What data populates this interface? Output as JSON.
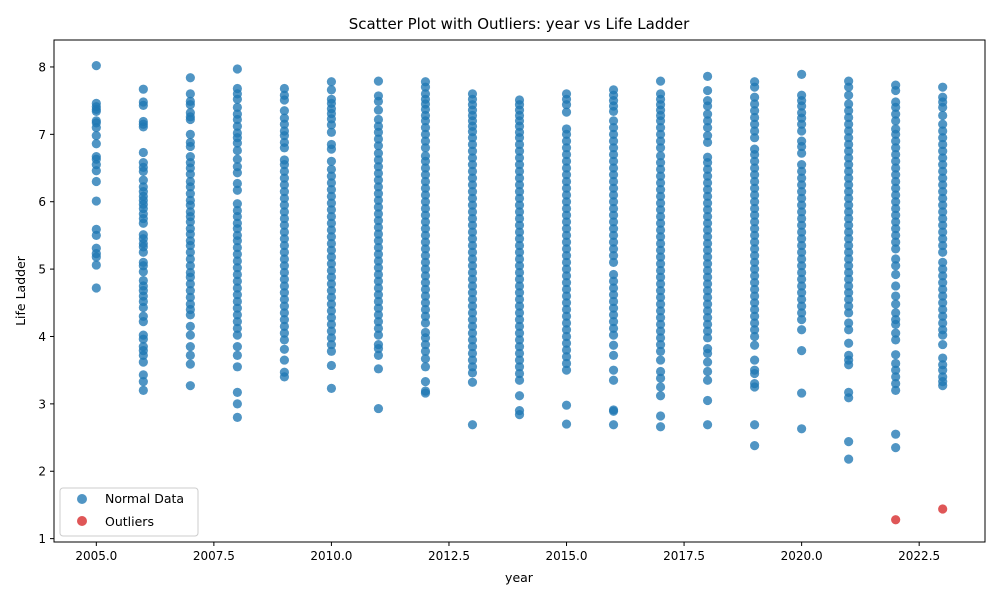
{
  "chart_data": {
    "type": "scatter",
    "title": "Scatter Plot with Outliers: year vs Life Ladder",
    "xlabel": "year",
    "ylabel": "Life Ladder",
    "xlim": [
      2004.1,
      2023.9
    ],
    "ylim": [
      0.95,
      8.4
    ],
    "x_ticks": [
      2005.0,
      2007.5,
      2010.0,
      2012.5,
      2015.0,
      2017.5,
      2020.0,
      2022.5
    ],
    "x_tick_labels": [
      "2005.0",
      "2007.5",
      "2010.0",
      "2012.5",
      "2015.0",
      "2017.5",
      "2020.0",
      "2022.5"
    ],
    "y_ticks": [
      1,
      2,
      3,
      4,
      5,
      6,
      7,
      8
    ],
    "y_tick_labels": [
      "1",
      "2",
      "3",
      "4",
      "5",
      "6",
      "7",
      "8"
    ],
    "grid": false,
    "legend_position": "lower-left",
    "colors": {
      "normal": "#1f77b4",
      "outlier": "#d62728"
    },
    "series": [
      {
        "name": "Normal Data",
        "groups": [
          {
            "x": 2005,
            "y": [
              8.02,
              7.46,
              7.41,
              7.37,
              7.34,
              7.2,
              7.17,
              7.1,
              6.98,
              6.86,
              6.67,
              6.63,
              6.55,
              6.46,
              6.3,
              6.01,
              5.59,
              5.5,
              5.31,
              5.23,
              5.18,
              5.06,
              4.72
            ]
          },
          {
            "x": 2006,
            "y": [
              7.67,
              7.48,
              7.43,
              7.19,
              7.15,
              7.11,
              6.73,
              6.58,
              6.51,
              6.45,
              6.32,
              6.22,
              6.15,
              6.08,
              6.02,
              5.96,
              5.9,
              5.82,
              5.75,
              5.68,
              5.51,
              5.45,
              5.38,
              5.33,
              5.25,
              5.1,
              5.05,
              4.96,
              4.83,
              4.75,
              4.68,
              4.6,
              4.52,
              4.43,
              4.3,
              4.22,
              4.02,
              3.96,
              3.85,
              3.79,
              3.72,
              3.62,
              3.43,
              3.33,
              3.2
            ]
          },
          {
            "x": 2007,
            "y": [
              7.84,
              7.6,
              7.49,
              7.44,
              7.32,
              7.26,
              7.22,
              7.0,
              6.88,
              6.82,
              6.67,
              6.58,
              6.5,
              6.41,
              6.3,
              6.22,
              6.12,
              6.02,
              5.95,
              5.85,
              5.78,
              5.7,
              5.6,
              5.52,
              5.42,
              5.35,
              5.25,
              5.15,
              5.05,
              4.95,
              4.88,
              4.78,
              4.68,
              4.58,
              4.48,
              4.4,
              4.32,
              4.15,
              4.02,
              3.85,
              3.72,
              3.59,
              3.27
            ]
          },
          {
            "x": 2008,
            "y": [
              7.97,
              7.68,
              7.6,
              7.52,
              7.4,
              7.3,
              7.22,
              7.12,
              7.02,
              6.95,
              6.87,
              6.76,
              6.63,
              6.52,
              6.43,
              6.27,
              6.17,
              5.97,
              5.87,
              5.78,
              5.68,
              5.6,
              5.5,
              5.42,
              5.32,
              5.22,
              5.12,
              5.02,
              4.92,
              4.82,
              4.72,
              4.62,
              4.52,
              4.42,
              4.32,
              4.22,
              4.12,
              4.02,
              3.85,
              3.72,
              3.55,
              3.17,
              3.0,
              2.8
            ]
          },
          {
            "x": 2009,
            "y": [
              7.68,
              7.58,
              7.51,
              7.35,
              7.24,
              7.15,
              7.05,
              6.98,
              6.88,
              6.8,
              6.62,
              6.55,
              6.45,
              6.35,
              6.25,
              6.15,
              6.05,
              5.95,
              5.85,
              5.75,
              5.65,
              5.55,
              5.45,
              5.35,
              5.25,
              5.15,
              5.05,
              4.95,
              4.85,
              4.75,
              4.65,
              4.55,
              4.45,
              4.35,
              4.25,
              4.15,
              4.05,
              3.95,
              3.81,
              3.65,
              3.47,
              3.4
            ]
          },
          {
            "x": 2010,
            "y": [
              7.78,
              7.66,
              7.52,
              7.46,
              7.38,
              7.31,
              7.23,
              7.14,
              7.03,
              6.85,
              6.78,
              6.6,
              6.48,
              6.38,
              6.28,
              6.18,
              6.08,
              5.98,
              5.88,
              5.78,
              5.68,
              5.58,
              5.48,
              5.38,
              5.28,
              5.18,
              5.08,
              4.98,
              4.88,
              4.78,
              4.68,
              4.58,
              4.48,
              4.38,
              4.28,
              4.18,
              4.08,
              3.98,
              3.88,
              3.78,
              3.57,
              3.23
            ]
          },
          {
            "x": 2011,
            "y": [
              7.79,
              7.57,
              7.49,
              7.36,
              7.22,
              7.12,
              7.03,
              6.93,
              6.83,
              6.72,
              6.62,
              6.52,
              6.42,
              6.32,
              6.22,
              6.12,
              6.02,
              5.92,
              5.82,
              5.72,
              5.62,
              5.52,
              5.42,
              5.32,
              5.22,
              5.12,
              5.02,
              4.92,
              4.82,
              4.72,
              4.62,
              4.52,
              4.42,
              4.32,
              4.22,
              4.12,
              4.02,
              3.88,
              3.82,
              3.72,
              3.52,
              2.93
            ]
          },
          {
            "x": 2012,
            "y": [
              7.78,
              7.7,
              7.6,
              7.52,
              7.45,
              7.37,
              7.28,
              7.2,
              7.1,
              7.0,
              6.9,
              6.8,
              6.68,
              6.6,
              6.5,
              6.4,
              6.3,
              6.2,
              6.1,
              6.0,
              5.9,
              5.8,
              5.7,
              5.6,
              5.5,
              5.4,
              5.3,
              5.2,
              5.1,
              5.0,
              4.9,
              4.8,
              4.7,
              4.6,
              4.5,
              4.4,
              4.3,
              4.2,
              4.06,
              3.98,
              3.88,
              3.78,
              3.67,
              3.55,
              3.33,
              3.19,
              3.16
            ]
          },
          {
            "x": 2013,
            "y": [
              7.6,
              7.52,
              7.44,
              7.36,
              7.28,
              7.2,
              7.12,
              7.04,
              6.95,
              6.85,
              6.75,
              6.65,
              6.55,
              6.45,
              6.35,
              6.25,
              6.15,
              6.05,
              5.95,
              5.85,
              5.75,
              5.65,
              5.55,
              5.45,
              5.35,
              5.25,
              5.15,
              5.05,
              4.95,
              4.85,
              4.75,
              4.65,
              4.55,
              4.45,
              4.35,
              4.25,
              4.15,
              4.05,
              3.95,
              3.85,
              3.75,
              3.65,
              3.55,
              3.46,
              3.32,
              2.69
            ]
          },
          {
            "x": 2014,
            "y": [
              7.51,
              7.44,
              7.36,
              7.28,
              7.2,
              7.12,
              7.03,
              6.95,
              6.85,
              6.75,
              6.65,
              6.55,
              6.45,
              6.35,
              6.25,
              6.15,
              6.05,
              5.95,
              5.85,
              5.75,
              5.65,
              5.55,
              5.45,
              5.35,
              5.25,
              5.15,
              5.05,
              4.95,
              4.85,
              4.75,
              4.65,
              4.55,
              4.45,
              4.35,
              4.25,
              4.15,
              4.05,
              3.95,
              3.85,
              3.75,
              3.65,
              3.55,
              3.45,
              3.35,
              3.12,
              2.9,
              2.84
            ]
          },
          {
            "x": 2015,
            "y": [
              7.6,
              7.52,
              7.44,
              7.33,
              7.08,
              7.0,
              6.9,
              6.8,
              6.7,
              6.6,
              6.5,
              6.4,
              6.3,
              6.2,
              6.1,
              6.0,
              5.9,
              5.8,
              5.7,
              5.6,
              5.5,
              5.4,
              5.3,
              5.2,
              5.1,
              5.0,
              4.9,
              4.8,
              4.7,
              4.6,
              4.5,
              4.4,
              4.3,
              4.2,
              4.1,
              4.0,
              3.9,
              3.8,
              3.7,
              3.6,
              3.5,
              2.98,
              2.7
            ]
          },
          {
            "x": 2016,
            "y": [
              7.66,
              7.58,
              7.5,
              7.42,
              7.34,
              7.2,
              7.1,
              7.0,
              6.9,
              6.8,
              6.7,
              6.6,
              6.5,
              6.4,
              6.3,
              6.2,
              6.1,
              6.0,
              5.9,
              5.8,
              5.7,
              5.6,
              5.5,
              5.4,
              5.3,
              5.2,
              5.1,
              4.92,
              4.82,
              4.72,
              4.62,
              4.52,
              4.42,
              4.32,
              4.22,
              4.12,
              4.02,
              3.87,
              3.72,
              3.5,
              3.35,
              2.91,
              2.89,
              2.69
            ]
          },
          {
            "x": 2017,
            "y": [
              7.79,
              7.6,
              7.52,
              7.44,
              7.36,
              7.28,
              7.2,
              7.1,
              7.0,
              6.9,
              6.8,
              6.68,
              6.58,
              6.48,
              6.38,
              6.28,
              6.18,
              6.08,
              5.98,
              5.88,
              5.78,
              5.68,
              5.58,
              5.48,
              5.38,
              5.28,
              5.18,
              5.08,
              4.98,
              4.88,
              4.78,
              4.68,
              4.58,
              4.48,
              4.38,
              4.28,
              4.18,
              4.08,
              3.98,
              3.88,
              3.78,
              3.65,
              3.48,
              3.38,
              3.25,
              3.12,
              2.82,
              2.66
            ]
          },
          {
            "x": 2018,
            "y": [
              7.86,
              7.65,
              7.5,
              7.42,
              7.3,
              7.2,
              7.1,
              6.98,
              6.88,
              6.66,
              6.58,
              6.48,
              6.38,
              6.28,
              6.18,
              6.08,
              5.98,
              5.88,
              5.78,
              5.68,
              5.58,
              5.48,
              5.38,
              5.28,
              5.18,
              5.08,
              4.98,
              4.88,
              4.78,
              4.68,
              4.58,
              4.48,
              4.38,
              4.28,
              4.18,
              4.08,
              3.98,
              3.82,
              3.75,
              3.62,
              3.48,
              3.35,
              3.05,
              2.69
            ]
          },
          {
            "x": 2019,
            "y": [
              7.78,
              7.7,
              7.55,
              7.45,
              7.35,
              7.25,
              7.15,
              7.05,
              6.95,
              6.78,
              6.7,
              6.6,
              6.5,
              6.4,
              6.3,
              6.2,
              6.1,
              6.0,
              5.9,
              5.8,
              5.7,
              5.6,
              5.5,
              5.4,
              5.3,
              5.2,
              5.1,
              5.0,
              4.9,
              4.8,
              4.7,
              4.6,
              4.5,
              4.4,
              4.3,
              4.2,
              4.1,
              4.0,
              3.87,
              3.65,
              3.5,
              3.45,
              3.3,
              3.25,
              2.69,
              2.38
            ]
          },
          {
            "x": 2020,
            "y": [
              7.89,
              7.58,
              7.5,
              7.42,
              7.32,
              7.24,
              7.15,
              7.05,
              6.9,
              6.82,
              6.72,
              6.55,
              6.45,
              6.35,
              6.25,
              6.15,
              6.05,
              5.95,
              5.85,
              5.75,
              5.65,
              5.55,
              5.45,
              5.35,
              5.25,
              5.15,
              5.05,
              4.95,
              4.85,
              4.75,
              4.65,
              4.55,
              4.45,
              4.35,
              4.25,
              4.1,
              3.79,
              3.16,
              2.63
            ]
          },
          {
            "x": 2021,
            "y": [
              7.79,
              7.7,
              7.58,
              7.45,
              7.35,
              7.25,
              7.15,
              7.05,
              6.95,
              6.85,
              6.75,
              6.65,
              6.55,
              6.45,
              6.35,
              6.25,
              6.15,
              6.05,
              5.95,
              5.85,
              5.75,
              5.65,
              5.55,
              5.45,
              5.35,
              5.25,
              5.15,
              5.05,
              4.95,
              4.85,
              4.75,
              4.65,
              4.55,
              4.45,
              4.35,
              4.2,
              4.1,
              3.9,
              3.72,
              3.65,
              3.58,
              3.17,
              3.09,
              2.44,
              2.18
            ]
          },
          {
            "x": 2022,
            "y": [
              7.73,
              7.65,
              7.48,
              7.4,
              7.3,
              7.2,
              7.08,
              7.0,
              6.9,
              6.8,
              6.7,
              6.6,
              6.5,
              6.4,
              6.3,
              6.2,
              6.1,
              6.0,
              5.9,
              5.8,
              5.7,
              5.6,
              5.5,
              5.4,
              5.3,
              5.15,
              5.05,
              4.92,
              4.75,
              4.6,
              4.48,
              4.35,
              4.25,
              4.18,
              4.05,
              3.95,
              3.73,
              3.6,
              3.5,
              3.4,
              3.3,
              3.2,
              2.55,
              2.35
            ]
          },
          {
            "x": 2023,
            "y": [
              7.7,
              7.55,
              7.48,
              7.4,
              7.28,
              7.15,
              7.05,
              6.95,
              6.85,
              6.75,
              6.65,
              6.55,
              6.45,
              6.35,
              6.25,
              6.15,
              6.05,
              5.95,
              5.85,
              5.75,
              5.65,
              5.55,
              5.45,
              5.35,
              5.25,
              5.1,
              5.0,
              4.9,
              4.8,
              4.7,
              4.6,
              4.5,
              4.4,
              4.3,
              4.2,
              4.1,
              4.02,
              3.88,
              3.68,
              3.58,
              3.5,
              3.4,
              3.33,
              3.27
            ]
          }
        ]
      },
      {
        "name": "Outliers",
        "groups": [
          {
            "x": 2022,
            "y": [
              1.28
            ]
          },
          {
            "x": 2023,
            "y": [
              1.44
            ]
          }
        ]
      }
    ]
  }
}
